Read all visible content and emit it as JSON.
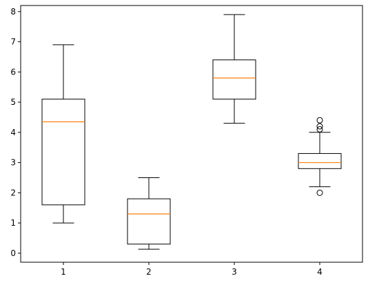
{
  "chart_data": {
    "type": "boxplot",
    "title": "",
    "xlabel": "",
    "ylabel": "",
    "categories": [
      "1",
      "2",
      "3",
      "4"
    ],
    "xlim": [
      0.5,
      4.5
    ],
    "ylim": [
      -0.3,
      8.2
    ],
    "y_ticks": [
      0,
      1,
      2,
      3,
      4,
      5,
      6,
      7,
      8
    ],
    "grid": false,
    "legend": "none",
    "boxes": [
      {
        "label": "1",
        "whisker_low": 1.0,
        "q1": 1.6,
        "median": 4.35,
        "q3": 5.1,
        "whisker_high": 6.9,
        "outliers": []
      },
      {
        "label": "2",
        "whisker_low": 0.13,
        "q1": 0.3,
        "median": 1.3,
        "q3": 1.8,
        "whisker_high": 2.5,
        "outliers": []
      },
      {
        "label": "3",
        "whisker_low": 4.3,
        "q1": 5.1,
        "median": 5.8,
        "q3": 6.4,
        "whisker_high": 7.9,
        "outliers": []
      },
      {
        "label": "4",
        "whisker_low": 2.2,
        "q1": 2.8,
        "median": 3.0,
        "q3": 3.3,
        "whisker_high": 4.0,
        "outliers": [
          2.0,
          4.1,
          4.2,
          4.4
        ]
      }
    ],
    "colors": {
      "box": "#000000",
      "median": "#ff7f0e",
      "outlier": "#000000"
    }
  }
}
